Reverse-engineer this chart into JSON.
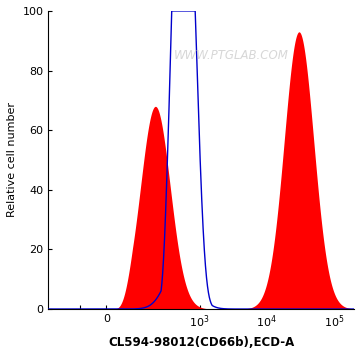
{
  "title": "",
  "xlabel": "CL594-98012(CD66b),ECD-A",
  "ylabel": "Relative cell number",
  "ylim": [
    0,
    100
  ],
  "yticks": [
    0,
    20,
    40,
    60,
    80,
    100
  ],
  "watermark": "WWW.PTGLAB.COM",
  "watermark_color": "#d0d0d0",
  "bg_color": "#ffffff",
  "red_fill_color": "#ff0000",
  "blue_line_color": "#0000cc",
  "red_alpha": 1.0,
  "blue_linewidth": 1.0,
  "linthresh": 100,
  "linscale": 0.35
}
